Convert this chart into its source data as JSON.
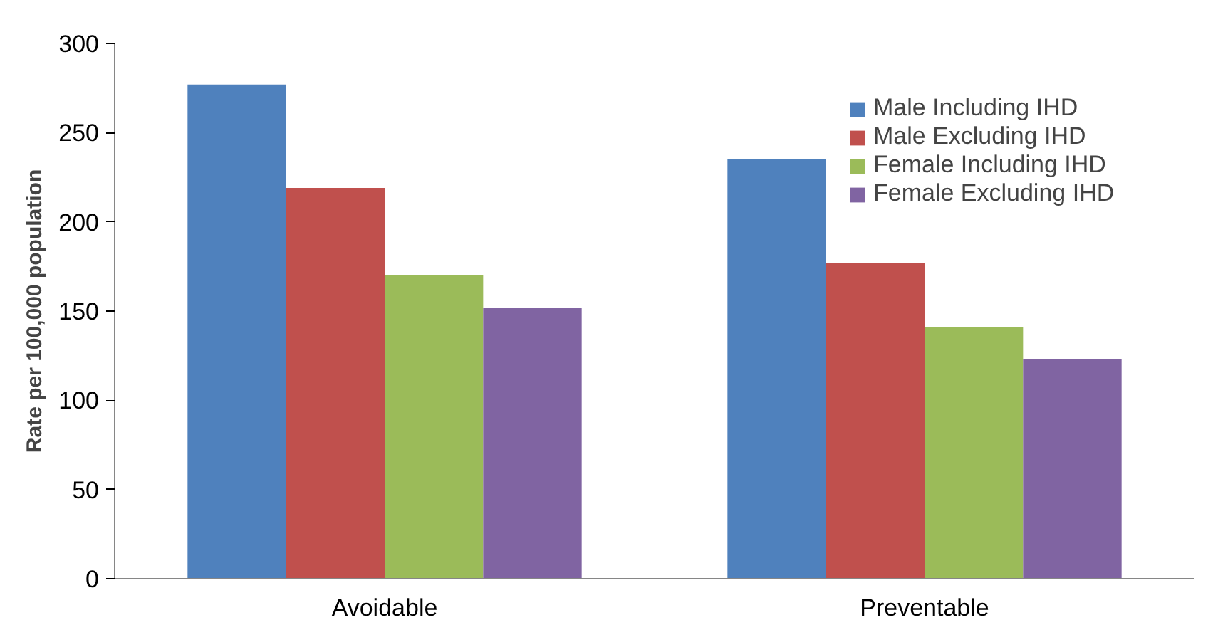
{
  "chart_data": {
    "type": "bar",
    "ylabel": "Rate per 100,000 population",
    "categories": [
      "Avoidable",
      "Preventable"
    ],
    "series": [
      {
        "name": "Male Including IHD",
        "color": "#4f81bd",
        "values": [
          277,
          235
        ]
      },
      {
        "name": "Male Excluding IHD",
        "color": "#c0504d",
        "values": [
          219,
          177
        ]
      },
      {
        "name": "Female Including IHD",
        "color": "#9bbb59",
        "values": [
          170,
          141
        ]
      },
      {
        "name": "Female Excluding IHD",
        "color": "#8064a2",
        "values": [
          152,
          123
        ]
      }
    ],
    "ylim": [
      0,
      300
    ],
    "yticks": [
      0,
      50,
      100,
      150,
      200,
      250,
      300
    ],
    "grid": false,
    "legend": "top right"
  }
}
